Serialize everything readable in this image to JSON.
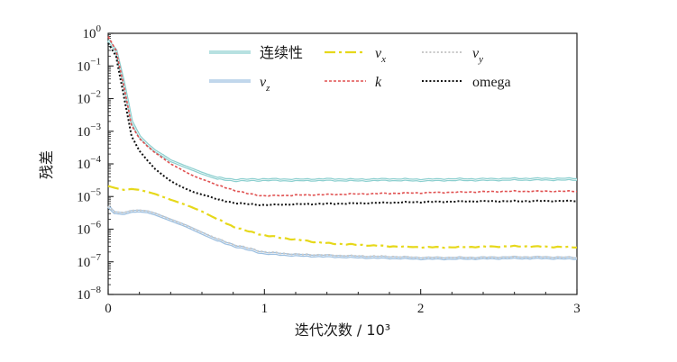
{
  "chart_data": {
    "type": "line",
    "yscale": "log",
    "xlabel": "迭代次数 / 10³",
    "ylabel": "残差",
    "xlim": [
      0,
      3
    ],
    "ylim_exp": [
      -8,
      0
    ],
    "xticks": [
      "0",
      "1",
      "2",
      "3"
    ],
    "yticks": [
      {
        "base": "10",
        "exp": "0"
      },
      {
        "base": "10",
        "exp": "-1"
      },
      {
        "base": "10",
        "exp": "-2"
      },
      {
        "base": "10",
        "exp": "-3"
      },
      {
        "base": "10",
        "exp": "-4"
      },
      {
        "base": "10",
        "exp": "-5"
      },
      {
        "base": "10",
        "exp": "-6"
      },
      {
        "base": "10",
        "exp": "-7"
      },
      {
        "base": "10",
        "exp": "-8"
      }
    ],
    "legend_position": "top-right",
    "series": [
      {
        "name": "连续性",
        "label": "连续性",
        "italic": false,
        "sub": "",
        "color": "#8ccfcf",
        "style": "solid-double",
        "x": [
          0,
          0.05,
          0.1,
          0.15,
          0.2,
          0.25,
          0.3,
          0.35,
          0.4,
          0.45,
          0.5,
          0.55,
          0.6,
          0.65,
          0.7,
          0.8,
          0.9,
          1.0,
          1.2,
          1.4,
          1.6,
          1.8,
          2.0,
          2.2,
          2.4,
          2.6,
          2.8,
          3.0
        ],
        "y": [
          0.6,
          0.3,
          0.03,
          0.002,
          0.0007,
          0.0004,
          0.00025,
          0.00018,
          0.000125,
          0.0001,
          8e-05,
          6.5e-05,
          5.2e-05,
          4.3e-05,
          3.6e-05,
          3.2e-05,
          3.2e-05,
          3.3e-05,
          3.2e-05,
          3.3e-05,
          3.2e-05,
          3.3e-05,
          3.2e-05,
          3.3e-05,
          3.3e-05,
          3.4e-05,
          3.4e-05,
          3.4e-05
        ]
      },
      {
        "name": "vx",
        "label": "v",
        "italic": true,
        "sub": "x",
        "color": "#e6d81a",
        "style": "dashdot",
        "x": [
          0,
          0.05,
          0.1,
          0.15,
          0.2,
          0.25,
          0.3,
          0.4,
          0.5,
          0.6,
          0.7,
          0.8,
          0.9,
          1.0,
          1.1,
          1.2,
          1.3,
          1.4,
          1.5,
          1.6,
          1.8,
          2.0,
          2.2,
          2.4,
          2.6,
          2.8,
          3.0
        ],
        "y": [
          2.1e-05,
          1.8e-05,
          1.6e-05,
          1.7e-05,
          1.6e-05,
          1.4e-05,
          1.2e-05,
          8e-06,
          5.5e-06,
          3.5e-06,
          2e-06,
          1.2e-06,
          8.5e-07,
          6.5e-07,
          5.5e-07,
          4.8e-07,
          4.2e-07,
          3.7e-07,
          3.5e-07,
          3.3e-07,
          3e-07,
          2.8e-07,
          2.8e-07,
          2.9e-07,
          3e-07,
          2.9e-07,
          2.8e-07
        ]
      },
      {
        "name": "vy",
        "label": "v",
        "italic": true,
        "sub": "y",
        "color": "#c8c8c8",
        "style": "dotted",
        "x": [
          0,
          0.04,
          0.1,
          0.15,
          0.2,
          0.25,
          0.3,
          0.4,
          0.5,
          0.6,
          0.7,
          0.8,
          0.9,
          1.0,
          1.2,
          1.4,
          1.6,
          1.8,
          2.0,
          2.2,
          2.4,
          2.6,
          2.8,
          3.0
        ],
        "y": [
          5e-06,
          3.4e-06,
          3.2e-06,
          3.7e-06,
          3.8e-06,
          3.6e-06,
          3.1e-06,
          2e-06,
          1.3e-06,
          8e-07,
          5e-07,
          3.4e-07,
          2.6e-07,
          2e-07,
          1.7e-07,
          1.6e-07,
          1.5e-07,
          1.45e-07,
          1.35e-07,
          1.35e-07,
          1.35e-07,
          1.4e-07,
          1.4e-07,
          1.35e-07
        ]
      },
      {
        "name": "vz",
        "label": "v",
        "italic": true,
        "sub": "z",
        "color": "#9cbfe0",
        "style": "solid-double",
        "x": [
          0,
          0.04,
          0.1,
          0.15,
          0.2,
          0.25,
          0.3,
          0.4,
          0.5,
          0.6,
          0.7,
          0.8,
          0.9,
          1.0,
          1.2,
          1.4,
          1.6,
          1.8,
          2.0,
          2.2,
          2.4,
          2.6,
          2.8,
          3.0
        ],
        "y": [
          5e-06,
          3.2e-06,
          3e-06,
          3.5e-06,
          3.6e-06,
          3.4e-06,
          2.9e-06,
          1.9e-06,
          1.25e-06,
          7.5e-07,
          4.6e-07,
          3.2e-07,
          2.4e-07,
          1.85e-07,
          1.6e-07,
          1.5e-07,
          1.4e-07,
          1.35e-07,
          1.28e-07,
          1.28e-07,
          1.3e-07,
          1.33e-07,
          1.33e-07,
          1.28e-07
        ]
      },
      {
        "name": "k",
        "label": "k",
        "italic": true,
        "sub": "",
        "color": "#e05050",
        "style": "dashed",
        "x": [
          0,
          0.05,
          0.1,
          0.15,
          0.2,
          0.25,
          0.3,
          0.35,
          0.4,
          0.45,
          0.5,
          0.55,
          0.6,
          0.65,
          0.7,
          0.8,
          0.9,
          1.0,
          1.2,
          1.4,
          1.6,
          1.8,
          2.0,
          2.2,
          2.4,
          2.6,
          2.8,
          3.0
        ],
        "y": [
          0.8,
          0.3,
          0.025,
          0.0015,
          0.0006,
          0.00035,
          0.00022,
          0.00015,
          0.0001,
          7.5e-05,
          5.5e-05,
          4.2e-05,
          3.4e-05,
          2.8e-05,
          2.2e-05,
          1.6e-05,
          1.2e-05,
          1.05e-05,
          1.1e-05,
          1.15e-05,
          1.2e-05,
          1.25e-05,
          1.3e-05,
          1.35e-05,
          1.4e-05,
          1.45e-05,
          1.45e-05,
          1.45e-05
        ]
      },
      {
        "name": "omega",
        "label": "omega",
        "italic": false,
        "sub": "",
        "color": "#111111",
        "style": "dotted",
        "x": [
          0,
          0.05,
          0.1,
          0.15,
          0.2,
          0.25,
          0.3,
          0.35,
          0.4,
          0.45,
          0.5,
          0.55,
          0.6,
          0.65,
          0.7,
          0.8,
          0.9,
          1.0,
          1.2,
          1.4,
          1.6,
          1.8,
          2.0,
          2.2,
          2.4,
          2.6,
          2.8,
          3.0
        ],
        "y": [
          0.5,
          0.2,
          0.012,
          0.0007,
          0.00025,
          0.00013,
          7e-05,
          4.5e-05,
          3e-05,
          2.2e-05,
          1.7e-05,
          1.35e-05,
          1.15e-05,
          1e-05,
          8e-06,
          6.5e-06,
          5.8e-06,
          5.5e-06,
          5.8e-06,
          6e-06,
          6.2e-06,
          6.5e-06,
          6.8e-06,
          7e-06,
          7.2e-06,
          7.2e-06,
          7.3e-06,
          7.3e-06
        ]
      }
    ]
  }
}
